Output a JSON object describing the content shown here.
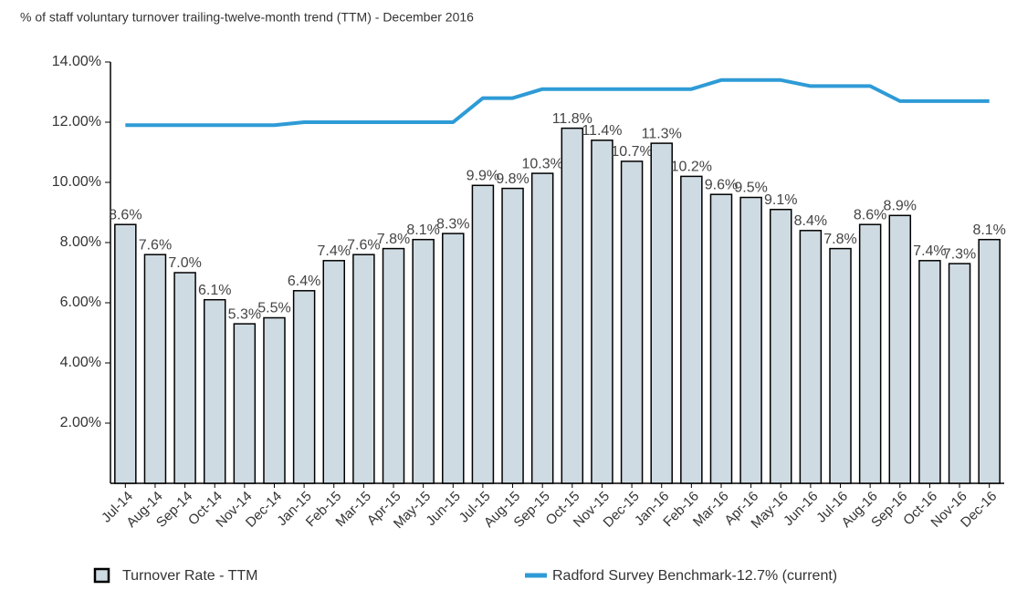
{
  "chart_data": {
    "type": "bar",
    "title": "% of staff voluntary turnover trailing-twelve-month trend (TTM) - December 2016",
    "categories": [
      "Jul-14",
      "Aug-14",
      "Sep-14",
      "Oct-14",
      "Nov-14",
      "Dec-14",
      "Jan-15",
      "Feb-15",
      "Mar-15",
      "Apr-15",
      "May-15",
      "Jun-15",
      "Jul-15",
      "Aug-15",
      "Sep-15",
      "Oct-15",
      "Nov-15",
      "Dec-15",
      "Jan-16",
      "Feb-16",
      "Mar-16",
      "Apr-16",
      "May-16",
      "Jun-16",
      "Jul-16",
      "Aug-16",
      "Sep-16",
      "Oct-16",
      "Nov-16",
      "Dec-16"
    ],
    "series": [
      {
        "name": "Turnover Rate - TTM",
        "type": "bar",
        "color": "#cfdbe3",
        "values": [
          8.6,
          7.6,
          7.0,
          6.1,
          5.3,
          5.5,
          6.4,
          7.4,
          7.6,
          7.8,
          8.1,
          8.3,
          9.9,
          9.8,
          10.3,
          11.8,
          11.4,
          10.7,
          11.3,
          10.2,
          9.6,
          9.5,
          9.1,
          8.4,
          7.8,
          8.6,
          8.9,
          7.4,
          7.3,
          8.1
        ],
        "value_labels": [
          "8.6%",
          "7.6%",
          "7.0%",
          "6.1%",
          "5.3%",
          "5.5%",
          "6.4%",
          "7.4%",
          "7.6%",
          "7.8%",
          "8.1%",
          "8.3%",
          "9.9%",
          "9.8%",
          "10.3%",
          "11.8%",
          "11.4%",
          "10.7%",
          "11.3%",
          "10.2%",
          "9.6%",
          "9.5%",
          "9.1%",
          "8.4%",
          "7.8%",
          "8.6%",
          "8.9%",
          "7.4%",
          "7.3%",
          "8.1%"
        ]
      },
      {
        "name": "Radford Survey Benchmark-12.7% (current)",
        "type": "line",
        "color": "#2e9bd6",
        "values": [
          11.9,
          11.9,
          11.9,
          11.9,
          11.9,
          11.9,
          12.0,
          12.0,
          12.0,
          12.0,
          12.0,
          12.0,
          12.8,
          12.8,
          13.1,
          13.1,
          13.1,
          13.1,
          13.1,
          13.1,
          13.4,
          13.4,
          13.4,
          13.2,
          13.2,
          13.2,
          12.7,
          12.7,
          12.7,
          12.7
        ]
      }
    ],
    "ylim": [
      0,
      14
    ],
    "yticks": [
      {
        "value": 2,
        "label": "2.00%"
      },
      {
        "value": 4,
        "label": "4.00%"
      },
      {
        "value": 6,
        "label": "6.00%"
      },
      {
        "value": 8,
        "label": "8.00%"
      },
      {
        "value": 10,
        "label": "10.00%"
      },
      {
        "value": 12,
        "label": "12.00%"
      },
      {
        "value": 14,
        "label": "14.00%"
      }
    ]
  }
}
